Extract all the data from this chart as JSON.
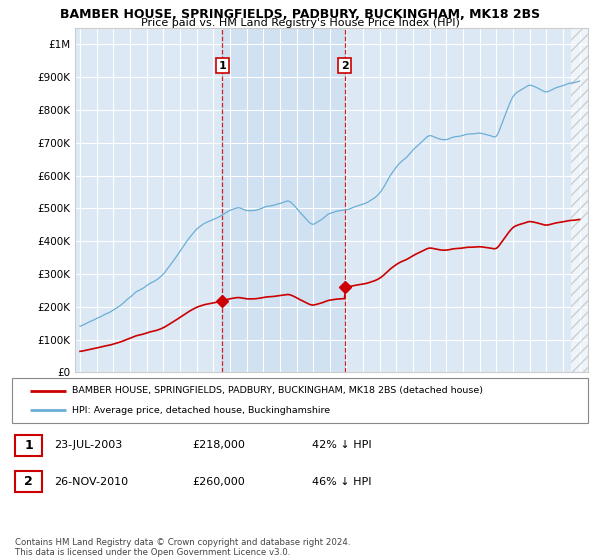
{
  "title": "BAMBER HOUSE, SPRINGFIELDS, PADBURY, BUCKINGHAM, MK18 2BS",
  "subtitle": "Price paid vs. HM Land Registry's House Price Index (HPI)",
  "hpi_color": "#6baed6",
  "price_color": "#cc0000",
  "background_color": "#dce9f5",
  "grid_color": "#cccccc",
  "sale1_date_num": 2003.55,
  "sale1_price": 218000,
  "sale2_date_num": 2010.9,
  "sale2_price": 260000,
  "ylim": [
    0,
    1050000
  ],
  "xlim_start": 1994.7,
  "xlim_end": 2025.5,
  "yticks": [
    0,
    100000,
    200000,
    300000,
    400000,
    500000,
    600000,
    700000,
    800000,
    900000,
    1000000
  ],
  "ytick_labels": [
    "£0",
    "£100K",
    "£200K",
    "£300K",
    "£400K",
    "£500K",
    "£600K",
    "£700K",
    "£800K",
    "£900K",
    "£1M"
  ],
  "xticks": [
    1995,
    1996,
    1997,
    1998,
    1999,
    2000,
    2001,
    2002,
    2003,
    2004,
    2005,
    2006,
    2007,
    2008,
    2009,
    2010,
    2011,
    2012,
    2013,
    2014,
    2015,
    2016,
    2017,
    2018,
    2019,
    2020,
    2021,
    2022,
    2023,
    2024,
    2025
  ],
  "legend_house_label": "BAMBER HOUSE, SPRINGFIELDS, PADBURY, BUCKINGHAM, MK18 2BS (detached house)",
  "legend_hpi_label": "HPI: Average price, detached house, Buckinghamshire",
  "annotation1_date": "23-JUL-2003",
  "annotation1_price_str": "£218,000",
  "annotation1_hpi": "42% ↓ HPI",
  "annotation2_date": "26-NOV-2010",
  "annotation2_price_str": "£260,000",
  "annotation2_hpi": "46% ↓ HPI",
  "footer": "Contains HM Land Registry data © Crown copyright and database right 2024.\nThis data is licensed under the Open Government Licence v3.0."
}
